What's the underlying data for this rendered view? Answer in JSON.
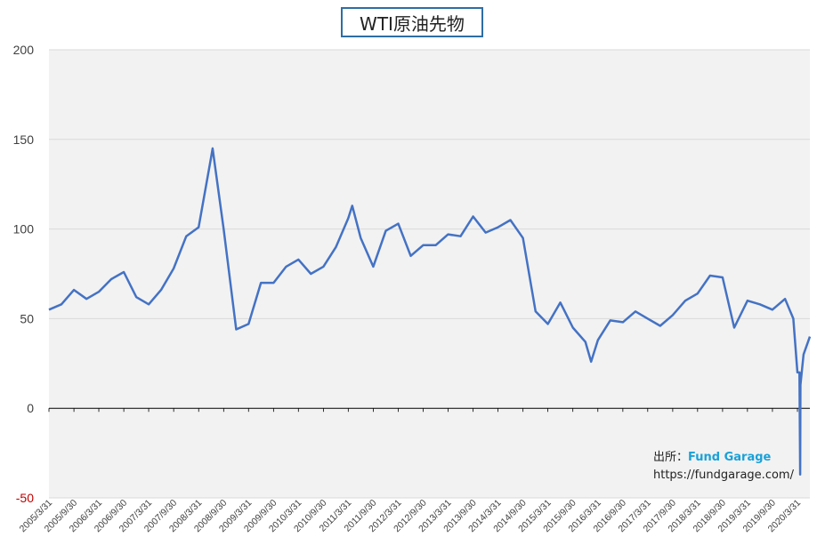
{
  "chart_data": {
    "type": "line",
    "title": "WTI原油先物",
    "ylim": [
      -50,
      200
    ],
    "yticks": [
      "200",
      "150",
      "100",
      "50",
      "0",
      "-50"
    ],
    "xtick_labels": [
      "2005/3/31",
      "2005/9/30",
      "2006/3/31",
      "2006/9/30",
      "2007/3/31",
      "2007/9/30",
      "2008/3/31",
      "2008/9/30",
      "2009/3/31",
      "2009/9/30",
      "2010/3/31",
      "2010/9/30",
      "2011/3/31",
      "2011/9/30",
      "2012/3/31",
      "2012/9/30",
      "2013/3/31",
      "2013/9/30",
      "2014/3/31",
      "2014/9/30",
      "2015/3/31",
      "2015/9/30",
      "2016/3/31",
      "2016/9/30",
      "2017/3/31",
      "2017/9/30",
      "2018/3/31",
      "2018/9/30",
      "2019/3/31",
      "2019/9/30",
      "2020/3/31"
    ],
    "line_color": "#4472c4",
    "series": [
      {
        "x": [
          "2005/3/31",
          "2005/6/30",
          "2005/9/30",
          "2005/12/31",
          "2006/3/31",
          "2006/6/30",
          "2006/9/30",
          "2006/12/31",
          "2007/3/31",
          "2007/6/30",
          "2007/9/30",
          "2007/12/31",
          "2008/3/31",
          "2008/6/30",
          "2008/7/11",
          "2008/9/30",
          "2008/12/31",
          "2009/3/31",
          "2009/6/30",
          "2009/9/30",
          "2009/12/31",
          "2010/3/31",
          "2010/6/30",
          "2010/9/30",
          "2010/12/31",
          "2011/3/31",
          "2011/4/29",
          "2011/6/30",
          "2011/9/30",
          "2011/12/31",
          "2012/3/31",
          "2012/6/30",
          "2012/9/30",
          "2012/12/31",
          "2013/3/31",
          "2013/6/30",
          "2013/9/30",
          "2013/12/31",
          "2014/3/31",
          "2014/6/30",
          "2014/9/30",
          "2014/12/31",
          "2015/3/31",
          "2015/6/30",
          "2015/9/30",
          "2015/12/31",
          "2016/2/11",
          "2016/3/31",
          "2016/6/30",
          "2016/9/30",
          "2016/12/31",
          "2017/3/31",
          "2017/6/30",
          "2017/9/30",
          "2017/12/31",
          "2018/3/31",
          "2018/6/30",
          "2018/9/30",
          "2018/12/24",
          "2019/3/31",
          "2019/6/30",
          "2019/9/30",
          "2019/12/31",
          "2020/3/1",
          "2020/3/31",
          "2020/4/15",
          "2020/4/20",
          "2020/4/22",
          "2020/5/15",
          "2020/6/30"
        ],
        "values": [
          55,
          58,
          66,
          61,
          65,
          72,
          76,
          62,
          58,
          66,
          78,
          96,
          101,
          140,
          145,
          100,
          44,
          47,
          70,
          70,
          79,
          83,
          75,
          79,
          90,
          106,
          113,
          95,
          79,
          99,
          103,
          85,
          91,
          91,
          97,
          96,
          107,
          98,
          101,
          105,
          95,
          54,
          47,
          59,
          45,
          37,
          26,
          38,
          49,
          48,
          54,
          50,
          46,
          52,
          60,
          64,
          74,
          73,
          45,
          60,
          58,
          55,
          61,
          50,
          20,
          20,
          -37,
          13,
          30,
          40
        ]
      }
    ],
    "source_label": "出所：",
    "source_brand": "Fund Garage",
    "source_url": "https://fundgarage.com/"
  }
}
